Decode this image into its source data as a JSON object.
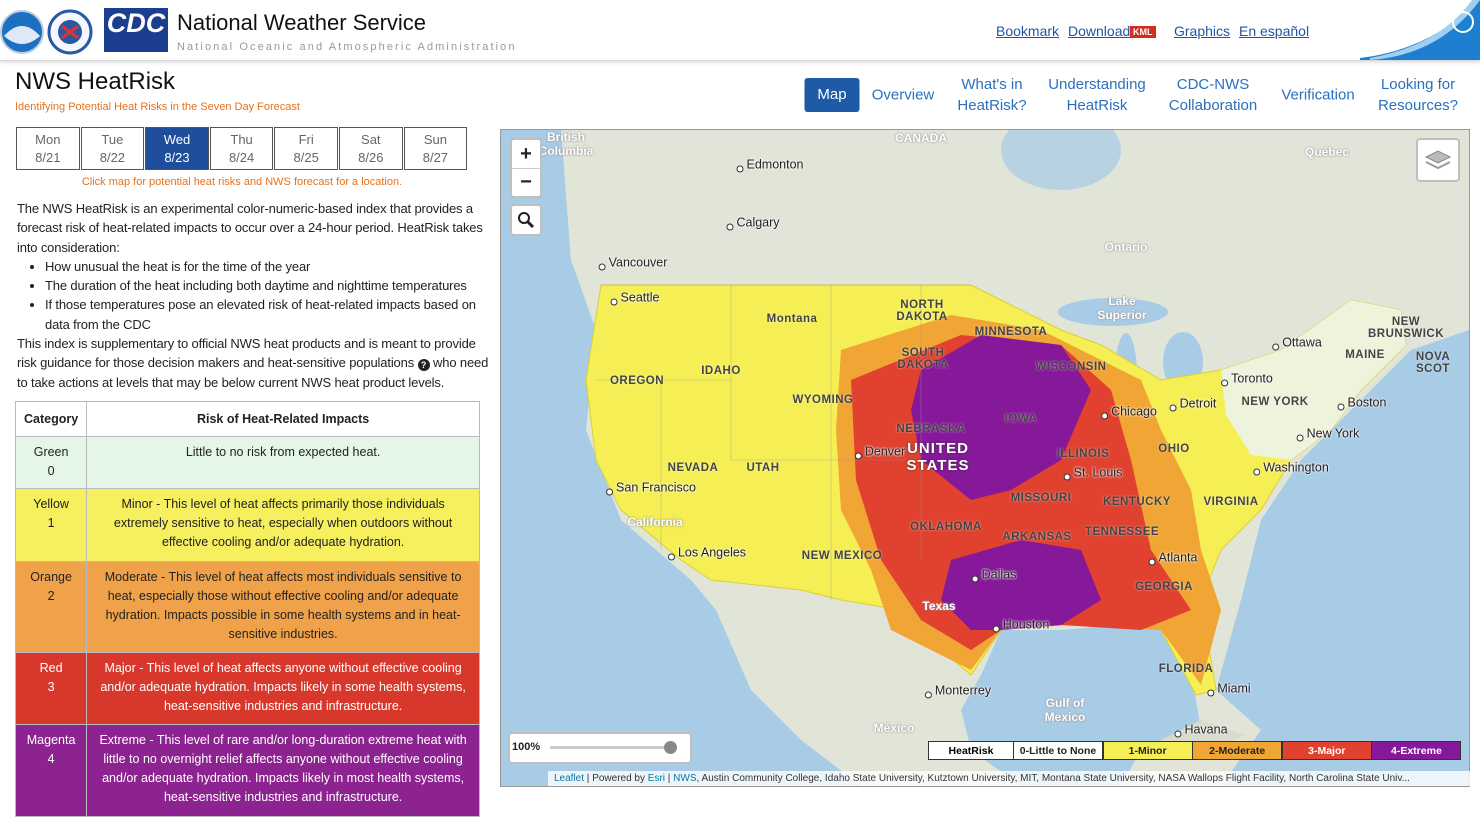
{
  "header": {
    "title": "National Weather Service",
    "subtitle": "National Oceanic and Atmospheric Administration",
    "cdc_logo": "CDC",
    "links": [
      "Bookmark",
      "Download",
      "Graphics",
      "En español"
    ],
    "kml_badge": "KML"
  },
  "app": {
    "title": "NWS HeatRisk",
    "tagline": "Identifying Potential Heat Risks in the Seven Day Forecast"
  },
  "nav": {
    "items": [
      "Map",
      "Overview",
      "What's in HeatRisk?",
      "Understanding HeatRisk",
      "CDC-NWS Collaboration",
      "Verification",
      "Looking for Resources?"
    ],
    "active": 0
  },
  "days": [
    {
      "day": "Mon",
      "date": "8/21"
    },
    {
      "day": "Tue",
      "date": "8/22"
    },
    {
      "day": "Wed",
      "date": "8/23"
    },
    {
      "day": "Thu",
      "date": "8/24"
    },
    {
      "day": "Fri",
      "date": "8/25"
    },
    {
      "day": "Sat",
      "date": "8/26"
    },
    {
      "day": "Sun",
      "date": "8/27"
    }
  ],
  "active_day": 2,
  "click_hint": "Click map for potential heat risks and NWS forecast for a location.",
  "description": {
    "intro": "The NWS HeatRisk is an experimental color-numeric-based index that provides a forecast risk of heat-related impacts to occur over a 24-hour period. HeatRisk takes into consideration:",
    "bullets": [
      "How unusual the heat is for the time of the year",
      "The duration of the heat including both daytime and nighttime temperatures",
      "If those temperatures pose an elevated risk of heat-related impacts based on data from the CDC"
    ],
    "outro_before": "This index is supplementary to official NWS heat products and is meant to provide risk guidance for those decision makers and heat-sensitive populations",
    "outro_after": "who need to take actions at levels that may be below current NWS heat product levels."
  },
  "table": {
    "headers": [
      "Category",
      "Risk of Heat-Related Impacts"
    ],
    "rows": [
      {
        "name": "Green",
        "level": 0,
        "color": "#e4f6e7",
        "text": "Little to no risk from expected heat."
      },
      {
        "name": "Yellow",
        "level": 1,
        "color": "#f6ef5e",
        "text": "Minor - This level of heat affects primarily those individuals extremely sensitive to heat, especially when outdoors without effective cooling and/or adequate hydration."
      },
      {
        "name": "Orange",
        "level": 2,
        "color": "#f0a24b",
        "text": "Moderate - This level of heat affects most individuals sensitive to heat, especially those without effective cooling and/or adequate hydration. Impacts possible in some health systems and in heat-sensitive industries."
      },
      {
        "name": "Red",
        "level": 3,
        "color": "#d8382b",
        "text": "Major - This level of heat affects anyone without effective cooling and/or adequate hydration. Impacts likely in some health systems, heat-sensitive industries and infrastructure."
      },
      {
        "name": "Magenta",
        "level": 4,
        "color": "#8d2390",
        "text": "Extreme - This level of rare and/or long-duration extreme heat with little to no overnight relief affects anyone without effective cooling and/or adequate hydration. Impacts likely in most health systems, heat-sensitive industries and infrastructure."
      }
    ]
  },
  "map": {
    "zoom_in": "+",
    "zoom_out": "−",
    "opacity": "100%",
    "legend": {
      "title": "HeatRisk",
      "items": [
        {
          "label": "0-Little to None",
          "color": "#ffffff"
        },
        {
          "label": "1-Minor",
          "color": "#f5ef55"
        },
        {
          "label": "2-Moderate",
          "color": "#f0a535"
        },
        {
          "label": "3-Major",
          "color": "#e0422f"
        },
        {
          "label": "4-Extreme",
          "color": "#86189a"
        }
      ]
    },
    "attribution": {
      "leaflet": "Leaflet",
      "powered": "Powered by",
      "esri": "Esri",
      "nws": "NWS",
      "credits": "Austin Community College, Idaho State University, Kutztown University, MIT, Montana State University, NASA Wallops Flight Facility, North Carolina State Univ..."
    },
    "labels": [
      "British Columbia",
      "CANADA",
      "Edmonton",
      "Calgary",
      "Québec",
      "Ontario",
      "Vancouver",
      "Seattle",
      "Montana",
      "NORTH DAKOTA",
      "MINNESOTA",
      "Lake Superior",
      "Ottawa",
      "NEW BRUNSWICK",
      "MAINE",
      "NOVA SCOT",
      "SOUTH DAKOTA",
      "WISCONSIN",
      "OREGON",
      "IDAHO",
      "Toronto",
      "WYOMING",
      "NEW YORK",
      "Boston",
      "Detroit",
      "Chicago",
      "IOWA",
      "NEBRASKA",
      "UNITED STATES",
      "Denver",
      "ILLINOIS",
      "New York",
      "OHIO",
      "St. Louis",
      "NEVADA",
      "UTAH",
      "Washington",
      "San Francisco",
      "MISSOURI",
      "KENTUCKY",
      "VIRGINIA",
      "California",
      "OKLAHOMA",
      "ARKANSAS",
      "TENNESSEE",
      "Los Angeles",
      "NEW MEXICO",
      "Atlanta",
      "Dallas",
      "GEORGIA",
      "Texas",
      "Houston",
      "FLORIDA",
      "Miami",
      "Monterrey",
      "Gulf of Mexico",
      "México",
      "Havana"
    ]
  }
}
